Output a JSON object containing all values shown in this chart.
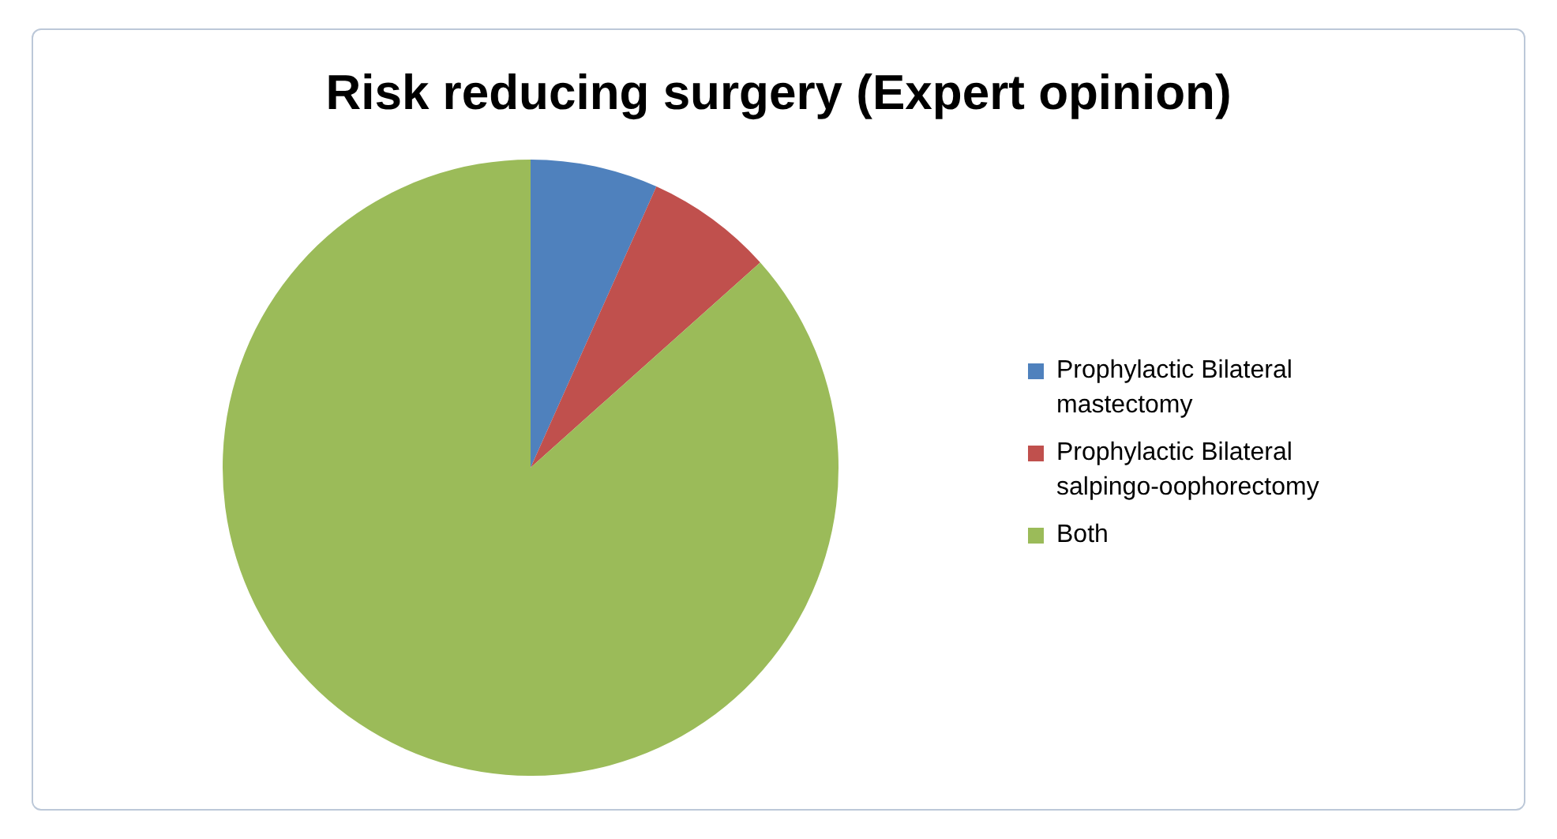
{
  "chart_data": {
    "type": "pie",
    "title": "Risk reducing surgery (Expert opinion)",
    "categories": [
      "Prophylactic Bilateral mastectomy",
      "Prophylactic Bilateral salpingo-oophorectomy",
      "Both"
    ],
    "values": [
      6.7,
      6.7,
      86.6
    ],
    "colors": [
      "#4f81bd",
      "#c0504d",
      "#9bbb59"
    ],
    "legend": "right"
  }
}
